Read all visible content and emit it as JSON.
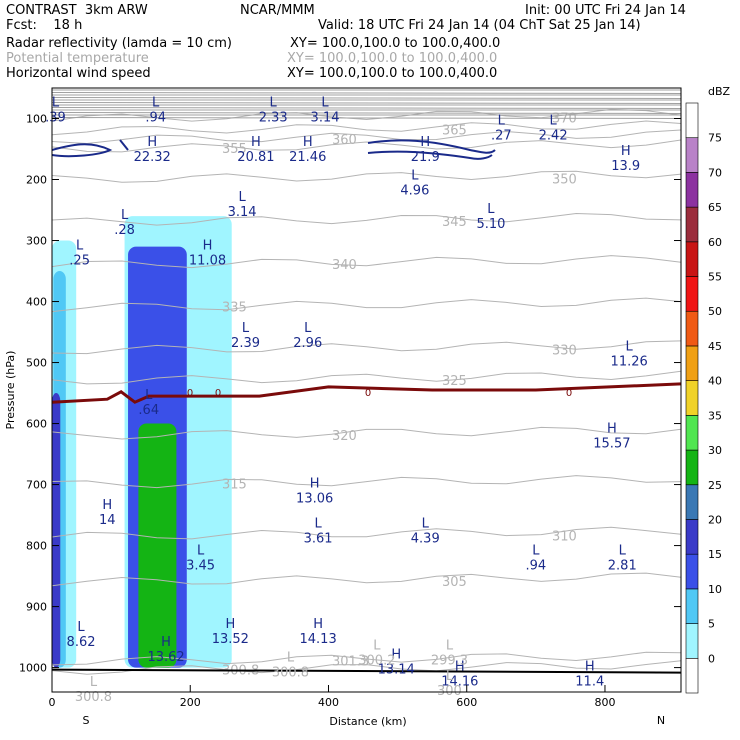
{
  "header": {
    "line1_left": "CONTRAST  3km ARW",
    "line1_center": "NCAR/MMM",
    "line1_right": "Init: 00 UTC Fri 24 Jan 14",
    "line2_left": "Fcst:    18 h",
    "line2_right": "Valid: 18 UTC Fri 24 Jan 14 (04 ChT Sat 25 Jan 14)",
    "field1_name": "Radar reflectivity (lamda = 10 cm)",
    "field1_xy": "XY= 100.0,100.0 to 100.0,400.0",
    "field2_name": "Potential temperature",
    "field2_xy": "XY= 100.0,100.0 to 100.0,400.0",
    "field3_name": "Horizontal wind speed",
    "field3_xy": "XY= 100.0,100.0 to 100.0,400.0"
  },
  "colors": {
    "theta": "#b4b4b4",
    "wind": "#1a2a8a",
    "zero_line": "#7a0a0a",
    "ground": "#000000"
  },
  "chart_data": {
    "type": "heatmap",
    "xlabel": "Distance (km)",
    "ylabel": "Pressure (hPa)",
    "xlim": [
      0,
      910
    ],
    "ylim": [
      1040,
      50
    ],
    "x_ticks": [
      "0",
      "200",
      "400",
      "600",
      "800"
    ],
    "x_tick_values": [
      0,
      200,
      400,
      600,
      800
    ],
    "x_end_labels": {
      "left": "S",
      "right": "N"
    },
    "y_ticks": [
      "100",
      "200",
      "300",
      "400",
      "500",
      "600",
      "700",
      "800",
      "900",
      "1000"
    ],
    "y_tick_values": [
      100,
      200,
      300,
      400,
      500,
      600,
      700,
      800,
      900,
      1000
    ],
    "colorbar": {
      "unit": "dBZ",
      "levels": [
        "0",
        "5",
        "10",
        "15",
        "20",
        "25",
        "30",
        "35",
        "40",
        "45",
        "50",
        "55",
        "60",
        "65",
        "70",
        "75"
      ],
      "colors": [
        "#ffffff",
        "#a0f5ff",
        "#50c8f5",
        "#3a50e8",
        "#3a3ac8",
        "#3a78b4",
        "#14b414",
        "#50e650",
        "#f0d228",
        "#f0a014",
        "#f05a14",
        "#f01414",
        "#c81414",
        "#9b2d3c",
        "#8c32a0",
        "#b982c8",
        "#ffffff"
      ]
    },
    "reflectivity_regions": [
      {
        "dbz": 5,
        "x": [
          0,
          35
        ],
        "p": [
          300,
          1000
        ]
      },
      {
        "dbz": 10,
        "x": [
          2,
          20
        ],
        "p": [
          350,
          1000
        ]
      },
      {
        "dbz": 20,
        "x": [
          0,
          12
        ],
        "p": [
          550,
          1000
        ]
      },
      {
        "dbz": 5,
        "x": [
          105,
          260
        ],
        "p": [
          260,
          1000
        ]
      },
      {
        "dbz": 15,
        "x": [
          110,
          195
        ],
        "p": [
          310,
          1000
        ]
      },
      {
        "dbz": 30,
        "x": [
          125,
          180
        ],
        "p": [
          600,
          1000
        ]
      }
    ],
    "theta_contours": [
      {
        "label": "300.8",
        "p": 1005
      },
      {
        "label": "301.3",
        "p": 990
      },
      {
        "label": "305",
        "p": 860
      },
      {
        "label": "310",
        "p": 785
      },
      {
        "label": "315",
        "p": 700
      },
      {
        "label": "320",
        "p": 620
      },
      {
        "label": "325",
        "p": 530
      },
      {
        "label": "330",
        "p": 480
      },
      {
        "label": "335",
        "p": 410
      },
      {
        "label": "340",
        "p": 340
      },
      {
        "label": "345",
        "p": 270
      },
      {
        "label": "350",
        "p": 200
      },
      {
        "label": "355",
        "p": 150
      },
      {
        "label": "360",
        "p": 135
      },
      {
        "label": "365",
        "p": 120
      },
      {
        "label": "370",
        "p": 100
      }
    ],
    "zero_isotherm": {
      "label": "0",
      "x": [
        0,
        80,
        100,
        120,
        140,
        300,
        400,
        550,
        700,
        910
      ],
      "p": [
        565,
        560,
        548,
        565,
        555,
        555,
        540,
        545,
        545,
        535
      ]
    },
    "wind_extrema": [
      {
        "type": "L",
        "value": ".39",
        "x": 5,
        "p": 80
      },
      {
        "type": "L",
        "value": ".94",
        "x": 150,
        "p": 80
      },
      {
        "type": "L",
        "value": "2.33",
        "x": 320,
        "p": 80
      },
      {
        "type": "L",
        "value": "3.14",
        "x": 395,
        "p": 80
      },
      {
        "type": "H",
        "value": "22.32",
        "x": 145,
        "p": 145
      },
      {
        "type": "H",
        "value": "20.81",
        "x": 295,
        "p": 145
      },
      {
        "type": "H",
        "value": "21.46",
        "x": 370,
        "p": 145
      },
      {
        "type": "H",
        "value": "21.9",
        "x": 540,
        "p": 145
      },
      {
        "type": "L",
        "value": ".27",
        "x": 650,
        "p": 110
      },
      {
        "type": "L",
        "value": "2.42",
        "x": 725,
        "p": 110
      },
      {
        "type": "H",
        "value": "13.9",
        "x": 830,
        "p": 160
      },
      {
        "type": "L",
        "value": "4.96",
        "x": 525,
        "p": 200
      },
      {
        "type": "L",
        "value": "3.14",
        "x": 275,
        "p": 235
      },
      {
        "type": "L",
        "value": "5.10",
        "x": 635,
        "p": 255
      },
      {
        "type": "L",
        "value": ".28",
        "x": 105,
        "p": 265
      },
      {
        "type": "L",
        "value": ".25",
        "x": 40,
        "p": 315
      },
      {
        "type": "H",
        "value": "11.08",
        "x": 225,
        "p": 315
      },
      {
        "type": "L",
        "value": "2.39",
        "x": 280,
        "p": 450
      },
      {
        "type": "L",
        "value": "2.96",
        "x": 370,
        "p": 450
      },
      {
        "type": "L",
        "value": "11.26",
        "x": 835,
        "p": 480
      },
      {
        "type": "L",
        "value": ".64",
        "x": 140,
        "p": 560
      },
      {
        "type": "H",
        "value": "15.57",
        "x": 810,
        "p": 615
      },
      {
        "type": "H",
        "value": "13.06",
        "x": 380,
        "p": 705
      },
      {
        "type": "H",
        "value": "14",
        "x": 80,
        "p": 740
      },
      {
        "type": "L",
        "value": "3.61",
        "x": 385,
        "p": 770
      },
      {
        "type": "L",
        "value": "4.39",
        "x": 540,
        "p": 770
      },
      {
        "type": "L",
        "value": "3.45",
        "x": 215,
        "p": 815
      },
      {
        "type": "L",
        "value": ".94",
        "x": 700,
        "p": 815
      },
      {
        "type": "L",
        "value": "2.81",
        "x": 825,
        "p": 815
      },
      {
        "type": "L",
        "value": "8.62",
        "x": 42,
        "p": 940
      },
      {
        "type": "H",
        "value": "13.52",
        "x": 258,
        "p": 935
      },
      {
        "type": "H",
        "value": "14.13",
        "x": 385,
        "p": 935
      },
      {
        "type": "H",
        "value": "13.62",
        "x": 165,
        "p": 965
      },
      {
        "type": "H",
        "value": "13.14",
        "x": 498,
        "p": 985
      },
      {
        "type": "H",
        "value": "14.16",
        "x": 590,
        "p": 1005
      },
      {
        "type": "H",
        "value": "11.4",
        "x": 778,
        "p": 1005
      }
    ],
    "theta_extrema": [
      {
        "type": "L",
        "value": "300.8",
        "x": 60,
        "p": 1030
      },
      {
        "type": "L",
        "value": "300.8",
        "x": 345,
        "p": 990
      },
      {
        "type": "L",
        "value": "300.2",
        "x": 470,
        "p": 970
      },
      {
        "type": "L",
        "value": "299.3",
        "x": 575,
        "p": 970
      },
      {
        "type": "L",
        "value": "300",
        "x": 575,
        "p": 1020
      }
    ]
  }
}
